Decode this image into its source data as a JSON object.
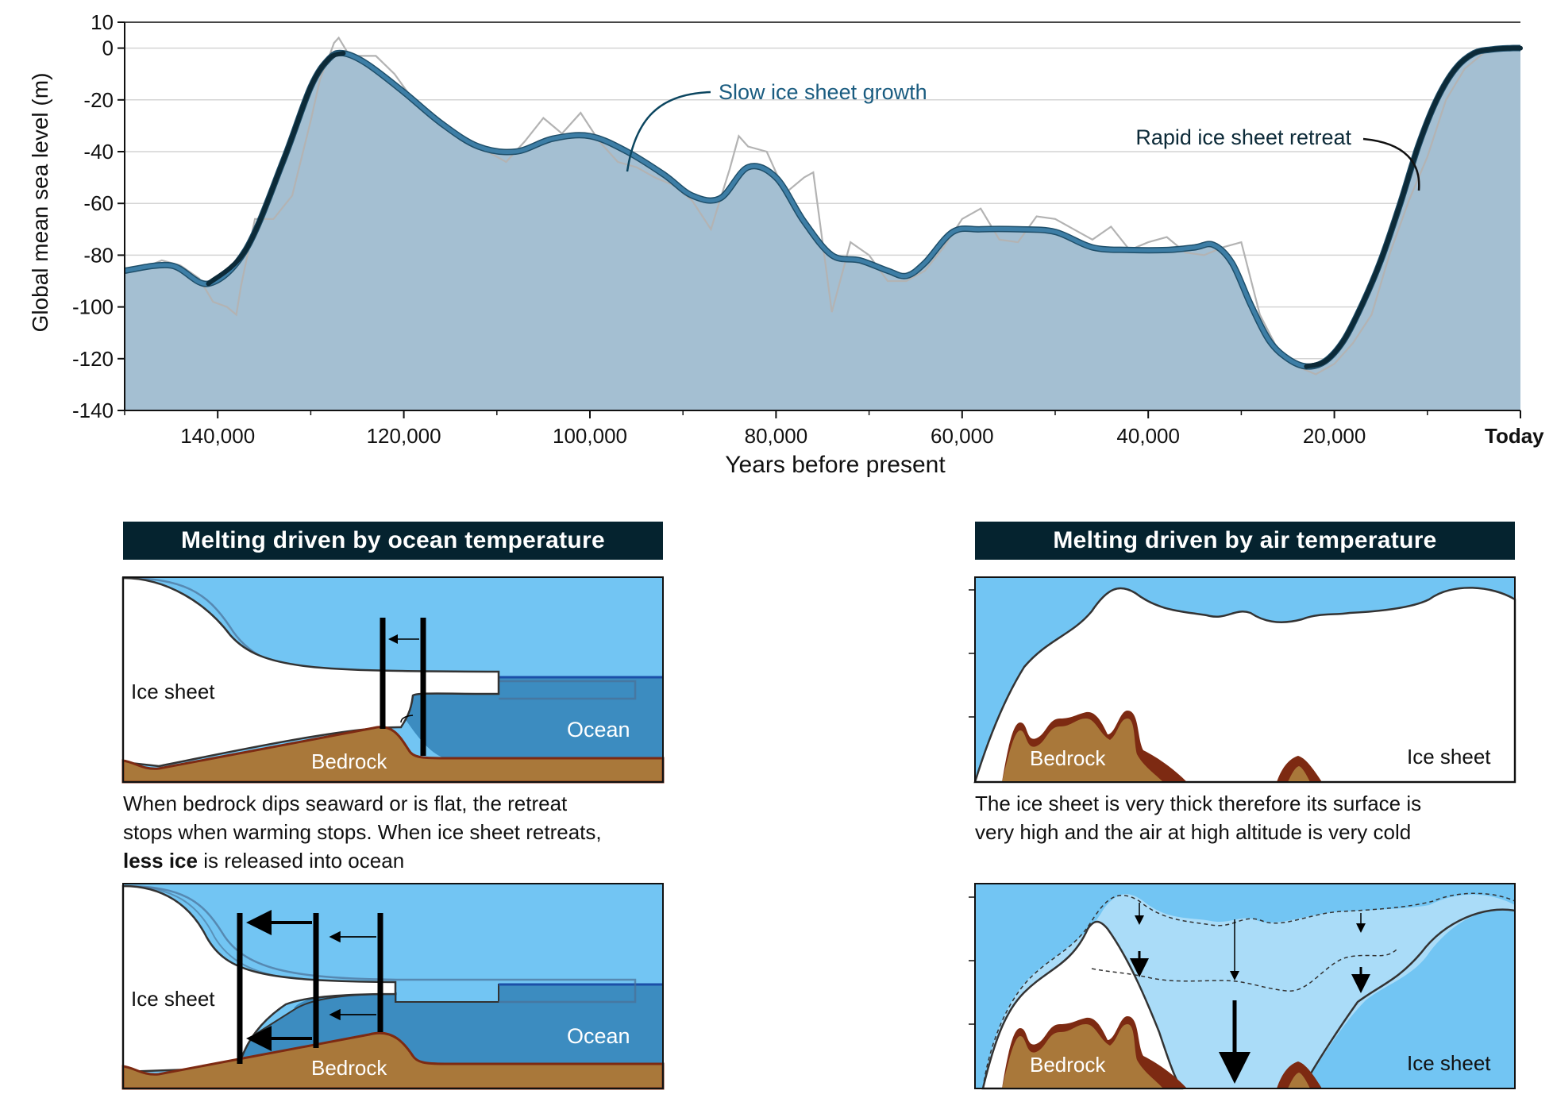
{
  "chart_data": {
    "type": "area",
    "ylabel": "Global mean sea level (m)",
    "xlabel": "Years before present",
    "xlim": [
      150000,
      0
    ],
    "ylim": [
      -140,
      10
    ],
    "x_ticks": [
      {
        "value": 140000,
        "label": "140,000"
      },
      {
        "value": 120000,
        "label": "120,000"
      },
      {
        "value": 100000,
        "label": "100,000"
      },
      {
        "value": 80000,
        "label": "80,000"
      },
      {
        "value": 60000,
        "label": "60,000"
      },
      {
        "value": 40000,
        "label": "40,000"
      },
      {
        "value": 20000,
        "label": "20,000"
      },
      {
        "value": 0,
        "label": "Today"
      }
    ],
    "y_ticks": [
      10,
      0,
      -20,
      -40,
      -60,
      -80,
      -100,
      -120,
      -140
    ],
    "grid": true,
    "series": [
      {
        "values_x": [
          150000,
          145000,
          141000,
          137000,
          133000,
          130000,
          128000,
          126500,
          124000,
          120000,
          116000,
          112000,
          108000,
          104000,
          100000,
          96000,
          92000,
          89000,
          86000,
          83000,
          80000,
          77000,
          74000,
          71000,
          68000,
          66000,
          64000,
          61000,
          58000,
          54000,
          50000,
          46000,
          42000,
          38000,
          35000,
          33000,
          31000,
          29000,
          27000,
          25000,
          23000,
          21000,
          19000,
          17000,
          15000,
          13000,
          11000,
          9000,
          7000,
          5000,
          3000,
          1000,
          0
        ],
        "values_y": [
          -86,
          -84,
          -91,
          -78,
          -44,
          -15,
          -4,
          -2,
          -6,
          -17,
          -29,
          -38,
          -40,
          -35,
          -34,
          -40,
          -49,
          -57,
          -58,
          -46,
          -50,
          -67,
          -80,
          -82,
          -86,
          -88,
          -83,
          -71,
          -70,
          -70,
          -71,
          -77,
          -78,
          -78,
          -77,
          -76,
          -83,
          -99,
          -113,
          -120,
          -123,
          -121,
          -113,
          -99,
          -82,
          -61,
          -38,
          -20,
          -8,
          -2,
          -0.5,
          0,
          0
        ]
      },
      {
        "values_x": [
          150000,
          148000,
          146000,
          144000,
          142000,
          140500,
          139000,
          138000,
          137500,
          136000,
          134000,
          132000,
          130000,
          129000,
          128000,
          127500,
          127000,
          126000,
          125000,
          123000,
          121000,
          119000,
          117000,
          115000,
          113000,
          111000,
          109000,
          107000,
          105000,
          103000,
          101000,
          99000,
          97000,
          95000,
          93000,
          91000,
          89000,
          87000,
          85000,
          84000,
          83000,
          81000,
          79000,
          77000,
          76000,
          75000,
          74000,
          72000,
          70000,
          68000,
          66000,
          64000,
          62000,
          60000,
          58000,
          56000,
          54000,
          52000,
          50000,
          48000,
          46000,
          44000,
          42000,
          40000,
          38000,
          36000,
          34000,
          32000,
          30000,
          28000,
          26000,
          24000,
          22000,
          20000,
          18000,
          16000,
          14000,
          12000,
          10000,
          8000,
          6000,
          4000,
          2000,
          0
        ],
        "values_y": [
          -86,
          -85,
          -82,
          -84,
          -89,
          -98,
          -100,
          -103,
          -92,
          -66,
          -66,
          -57,
          -28,
          -12,
          -3,
          2,
          4,
          -2,
          -3,
          -3,
          -10,
          -20,
          -25,
          -32,
          -36,
          -40,
          -44,
          -36,
          -27,
          -33,
          -25,
          -36,
          -44,
          -46,
          -50,
          -53,
          -59,
          -70,
          -47,
          -34,
          -38,
          -40,
          -56,
          -50,
          -48,
          -75,
          -102,
          -75,
          -80,
          -90,
          -90,
          -86,
          -77,
          -66,
          -62,
          -74,
          -75,
          -65,
          -66,
          -70,
          -74,
          -69,
          -78,
          -75,
          -73,
          -79,
          -80,
          -77,
          -75,
          -103,
          -117,
          -123,
          -126,
          -122,
          -114,
          -103,
          -79,
          -59,
          -42,
          -20,
          -8,
          -2,
          0,
          0
        ]
      }
    ],
    "annotations": [
      "Slow ice sheet growth",
      "Rapid ice sheet retreat"
    ]
  },
  "panels": {
    "ocean": {
      "title": "Melting driven by ocean temperature",
      "caption_line1": "When bedrock dips seaward or is flat, the retreat",
      "caption_line2": "stops when warming stops. When ice sheet retreats,",
      "caption_bold": "less ice",
      "caption_rest": " is released into ocean",
      "label_ice": "Ice sheet",
      "label_ocean": "Ocean",
      "label_bedrock": "Bedrock"
    },
    "air": {
      "title": "Melting driven by air temperature",
      "caption_line1": "The ice sheet is very thick therefore its surface is",
      "caption_line2": "very high and the air at high altitude is very cold",
      "label_ice": "Ice sheet",
      "label_bedrock": "Bedrock"
    }
  },
  "colors": {
    "area_fill": "#a4bfd2",
    "smooth_line": "#3d7ea6",
    "emphasis_line": "#0c2a38",
    "raw_line": "#b3b3b3",
    "sky": "#72c5f3",
    "ocean": "#3c8cc0",
    "bedrock": "#a9783a",
    "bedrock_edge": "#7d2a12",
    "meltwater": "#aadcf8",
    "title_bar": "#05232f"
  }
}
